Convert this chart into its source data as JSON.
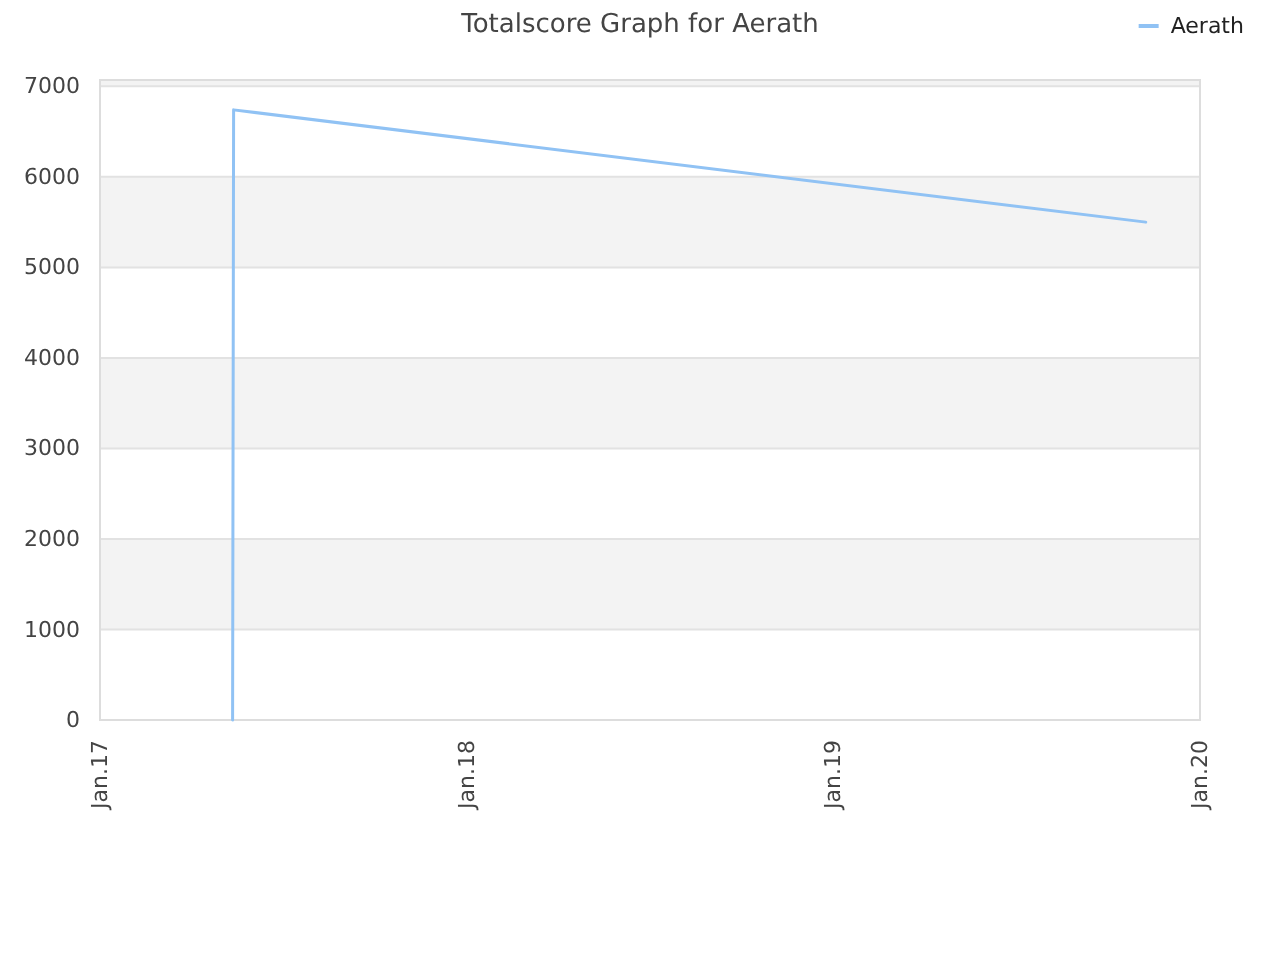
{
  "chart_data": {
    "type": "line",
    "title": "Totalscore Graph for Aerath",
    "x": [
      "2017-05-13",
      "2017-05-14",
      "2019-11-08"
    ],
    "series": [
      {
        "name": "Aerath",
        "color": "#90c2f4",
        "values": [
          0,
          6740,
          5500
        ]
      }
    ],
    "xlim": [
      "2017-01-01",
      "2020-01-01"
    ],
    "xticks": [
      {
        "value": "2017-01-01",
        "label": "Jan.17"
      },
      {
        "value": "2018-01-01",
        "label": "Jan.18"
      },
      {
        "value": "2019-01-01",
        "label": "Jan.19"
      },
      {
        "value": "2020-01-01",
        "label": "Jan.20"
      }
    ],
    "ylim": [
      0,
      7070
    ],
    "yticks": [
      0,
      1000,
      2000,
      3000,
      4000,
      5000,
      6000,
      7000
    ],
    "grid": "y",
    "legend": "top right",
    "marker": "none",
    "line_style": "solid"
  }
}
